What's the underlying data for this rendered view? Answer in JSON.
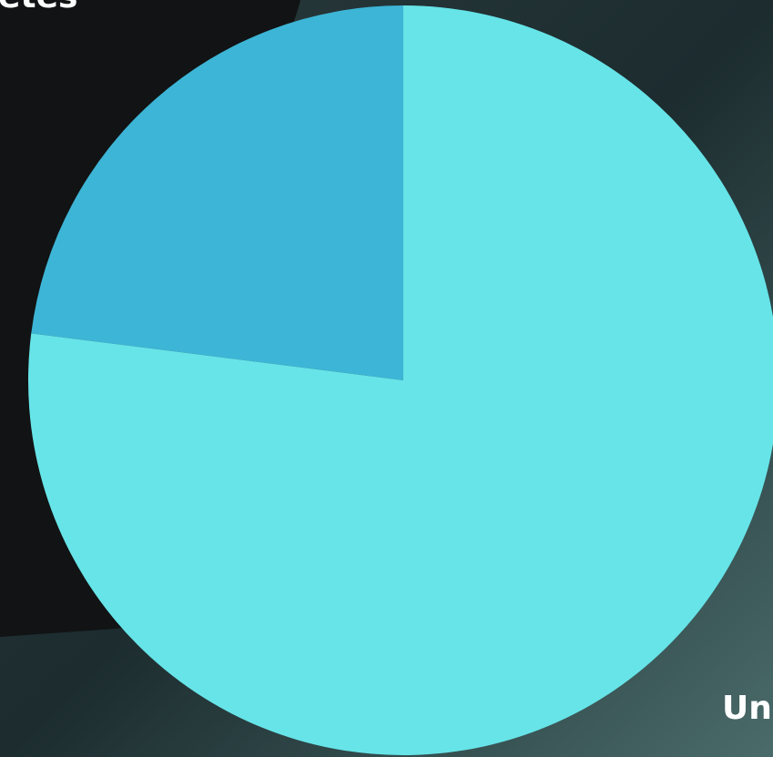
{
  "chart_data": {
    "type": "pie",
    "categories": [
      "etes",
      "Un"
    ],
    "values": [
      23,
      77
    ],
    "colors": [
      "#3db5d6",
      "#67e4e8"
    ]
  }
}
